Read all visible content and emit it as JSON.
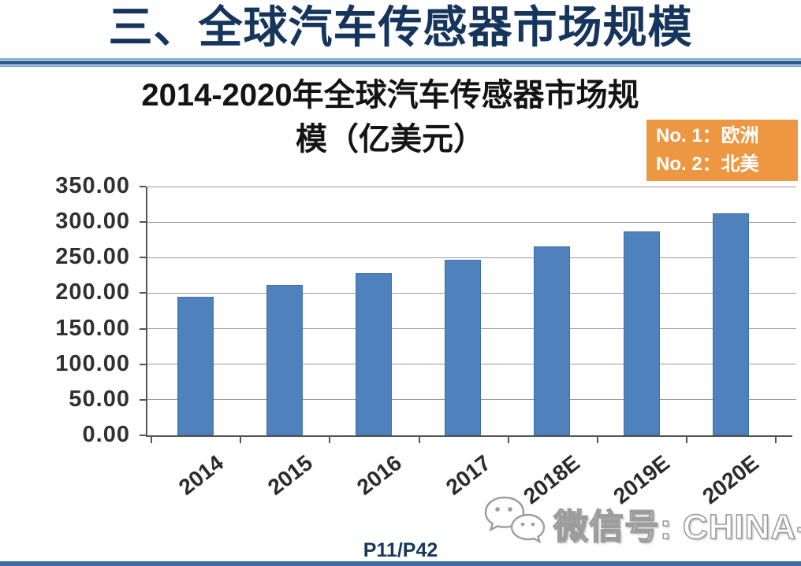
{
  "slide": {
    "title": "三、全球汽车传感器市场规模",
    "page_indicator": "P11/P42",
    "watermark_text": "微信号: CHINA-SENSOR"
  },
  "legend_box": {
    "lines": [
      "No. 1：欧洲",
      "No. 2：北美"
    ],
    "bg_color": "#ee9743",
    "text_color": "#ffffff"
  },
  "chart_data": {
    "type": "bar",
    "title": "2014-2020年全球汽车传感器市场规模（亿美元）",
    "title_lines": [
      "2014-2020年全球汽车传感器市场规",
      "模（亿美元）"
    ],
    "categories": [
      "2014",
      "2015",
      "2016",
      "2017",
      "2018E",
      "2019E",
      "2020E"
    ],
    "values": [
      195,
      211,
      228,
      247,
      266,
      287,
      312
    ],
    "unit": "亿美元",
    "ylim": [
      0,
      350
    ],
    "ytick_interval": 50,
    "ytick_labels": [
      "350.00",
      "300.00",
      "250.00",
      "200.00",
      "150.00",
      "100.00",
      "50.00",
      "0.00"
    ],
    "xlabel": "",
    "ylabel": "",
    "grid": true,
    "legend_position": "none",
    "bar_color": "#4f81bd",
    "grid_color": "#9b9b9b",
    "axis_color": "#555555"
  },
  "colors": {
    "title_navy": "#16355c",
    "divider_blue_dark": "#2d5c8e",
    "divider_blue_light": "#7ba6cc",
    "watermark_grey": "#9c9c9c"
  }
}
